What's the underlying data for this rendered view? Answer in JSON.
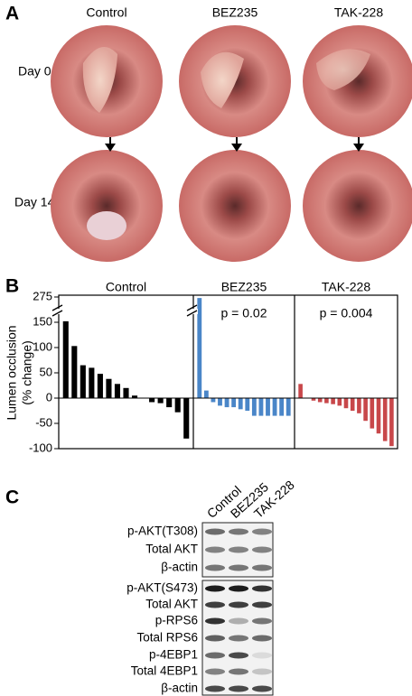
{
  "panel_a": {
    "label": "A",
    "columns": [
      "Control",
      "BEZ235",
      "TAK-228"
    ],
    "rows": [
      "Day 0",
      "Day 14"
    ]
  },
  "chart_data": {
    "type": "bar",
    "panel_label": "B",
    "ylabel": [
      "Lumen occlusion",
      "(% change)"
    ],
    "ylim": [
      -100,
      275
    ],
    "yticks": [
      -100,
      -50,
      0,
      50,
      100,
      150,
      275
    ],
    "axis_break": true,
    "groups": [
      {
        "name": "Control",
        "color": "#000000",
        "values": [
          155,
          103,
          65,
          60,
          48,
          38,
          28,
          20,
          5,
          0,
          -8,
          -10,
          -18,
          -28,
          -80
        ]
      },
      {
        "name": "BEZ235",
        "color": "#4a86c8",
        "annotation": "p = 0.02",
        "values": [
          270,
          15,
          -8,
          -15,
          -18,
          -18,
          -22,
          -25,
          -35,
          -35,
          -35,
          -35,
          -35,
          -35
        ]
      },
      {
        "name": "TAK-228",
        "color": "#c8474a",
        "annotation": "p = 0.004",
        "values": [
          28,
          0,
          -5,
          -8,
          -10,
          -12,
          -15,
          -20,
          -25,
          -30,
          -45,
          -60,
          -70,
          -85,
          -95
        ]
      }
    ]
  },
  "panel_c": {
    "label": "C",
    "columns": [
      "Control",
      "BEZ235",
      "TAK-228"
    ],
    "rows": [
      "p-AKT(T308)",
      "Total AKT",
      "β-actin",
      "p-AKT(S473)",
      "Total AKT",
      "p-RPS6",
      "Total RPS6",
      "p-4EBP1",
      "Total 4EBP1",
      "β-actin"
    ]
  }
}
